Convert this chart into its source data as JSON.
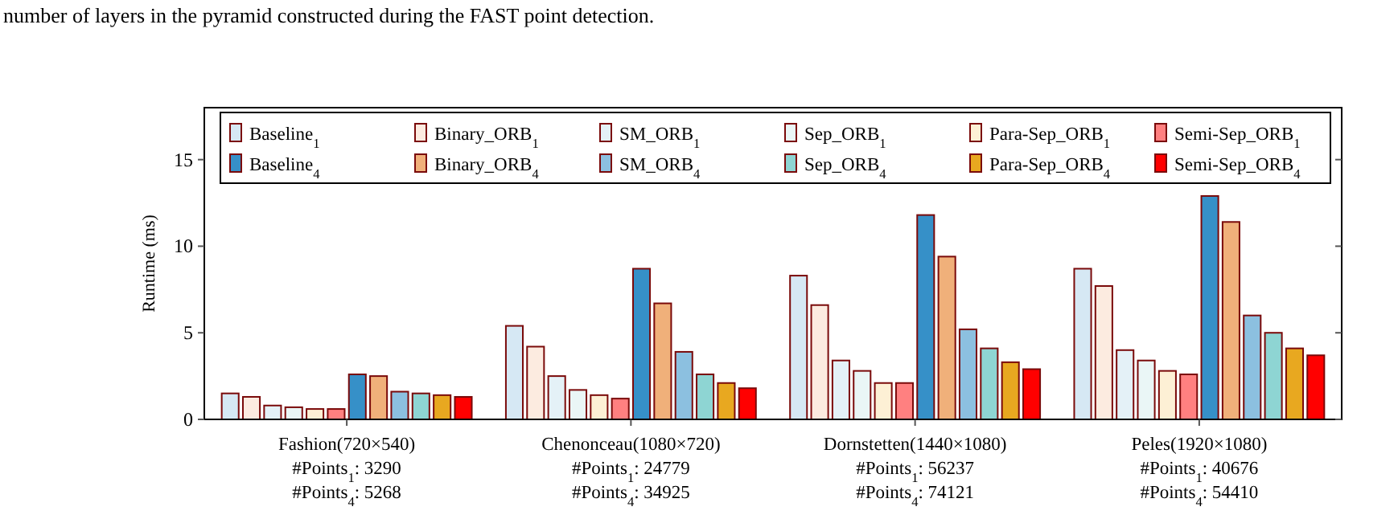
{
  "chart_data": {
    "type": "bar",
    "annotations": [
      "number of layers in the pyramid constructed during the FAST point detection."
    ],
    "ylabel": "Runtime (ms)",
    "categories": [
      "Fashion(720×540)\n#Points$_{1}$: 3290\n#Points$_{4}$: 5268",
      "Chenonceau(1080×720)\n#Points$_{1}$: 24779\n#Points$_{4}$: 34925",
      "Dornstetten(1440×1080)\n#Points$_{1}$: 56237\n#Points$_{4}$: 74121",
      "Peles(1920×1080)\n#Points$_{1}$: 40676\n#Points$_{4}$: 54410"
    ],
    "series": [
      {
        "name": "Baseline$_{1}$",
        "color": "#d6e8f4",
        "values": [
          1.5,
          5.4,
          8.3,
          8.7
        ]
      },
      {
        "name": "Binary_ORB$_{1}$",
        "color": "#fcebe0",
        "values": [
          1.3,
          4.2,
          6.6,
          7.7
        ]
      },
      {
        "name": "SM_ORB$_{1}$",
        "color": "#e4f1f7",
        "values": [
          0.8,
          2.5,
          3.4,
          4.0
        ]
      },
      {
        "name": "Sep_ORB$_{1}$",
        "color": "#eaf6f6",
        "values": [
          0.7,
          1.7,
          2.8,
          3.4
        ]
      },
      {
        "name": "Para-Sep_ORB$_{1}$",
        "color": "#fdf0d5",
        "values": [
          0.6,
          1.4,
          2.1,
          2.8
        ]
      },
      {
        "name": "Semi-Sep_ORB$_{1}$",
        "color": "#ff8080",
        "values": [
          0.6,
          1.2,
          2.1,
          2.6
        ]
      },
      {
        "name": "Baseline$_{4}$",
        "color": "#3690c8",
        "values": [
          2.6,
          8.7,
          11.8,
          12.9
        ]
      },
      {
        "name": "Binary_ORB$_{4}$",
        "color": "#f0b07a",
        "values": [
          2.5,
          6.7,
          9.4,
          11.4
        ]
      },
      {
        "name": "SM_ORB$_{4}$",
        "color": "#8cc0e0",
        "values": [
          1.6,
          3.9,
          5.2,
          6.0
        ]
      },
      {
        "name": "Sep_ORB$_{4}$",
        "color": "#8ed5d3",
        "values": [
          1.5,
          2.6,
          4.1,
          5.0
        ]
      },
      {
        "name": "Para-Sep_ORB$_{4}$",
        "color": "#e8a820",
        "values": [
          1.4,
          2.1,
          3.3,
          4.1
        ]
      },
      {
        "name": "Semi-Sep_ORB$_{4}$",
        "color": "#ff0000",
        "values": [
          1.3,
          1.8,
          2.9,
          3.7
        ]
      }
    ],
    "ylim": [
      0,
      18
    ],
    "yticks": [
      0,
      5,
      10,
      15
    ],
    "legend": "top"
  }
}
